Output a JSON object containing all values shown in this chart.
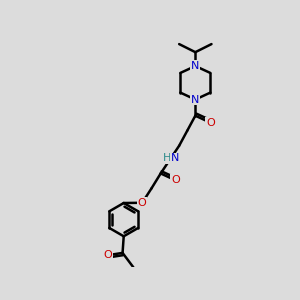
{
  "bg_color": "#dcdcdc",
  "bond_color": "#000000",
  "bond_width": 1.8,
  "atom_colors": {
    "N": "#0000cc",
    "O": "#cc0000",
    "H": "#2e8b8b"
  },
  "font_size": 8.5
}
